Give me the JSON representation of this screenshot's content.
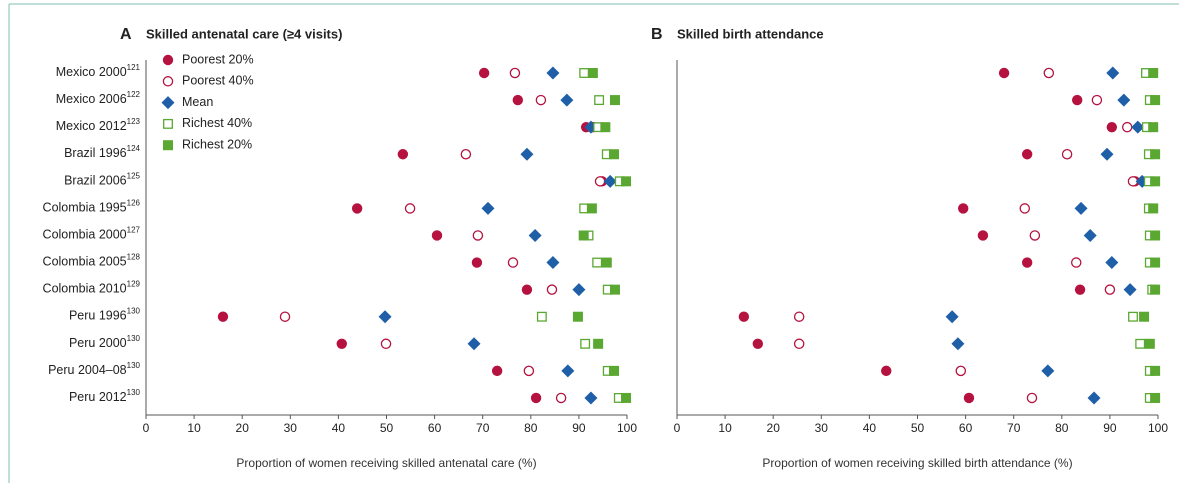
{
  "chart_data": [
    {
      "type": "dot",
      "panel": "A",
      "title": "Skilled antenatal care (≥4 visits)",
      "xlabel": "Proportion of women receiving skilled antenatal care (%)",
      "categories": [
        "Mexico 2000",
        "Mexico 2006",
        "Mexico 2012",
        "Brazil 1996",
        "Brazil 2006",
        "Colombia 1995",
        "Colombia 2000",
        "Colombia 2005",
        "Colombia 2010",
        "Peru 1996",
        "Peru 2000",
        "Peru 2004–08",
        "Peru 2012"
      ],
      "category_refs": [
        "121",
        "122",
        "123",
        "124",
        "125",
        "126",
        "127",
        "128",
        "129",
        "130",
        "130",
        "130",
        "130"
      ],
      "xlim": [
        0,
        100
      ],
      "xticks": [
        0,
        10,
        20,
        30,
        40,
        50,
        60,
        70,
        80,
        90,
        100
      ],
      "legend": "upper left",
      "series": [
        {
          "name": "Poorest 20%",
          "color": "#b5123f",
          "marker": "circle-filled",
          "values": [
            70.3,
            77.3,
            91.5,
            53.4,
            94.8,
            43.9,
            60.5,
            68.8,
            79.2,
            16,
            40.7,
            73,
            81.1
          ]
        },
        {
          "name": "Poorest 40%",
          "color": "#b5123f",
          "marker": "circle-open",
          "values": [
            76.7,
            82.1,
            93,
            66.5,
            94.4,
            54.9,
            69,
            76.3,
            84.4,
            28.9,
            49.9,
            79.6,
            86.3
          ]
        },
        {
          "name": "Mean",
          "color": "#1f5fa8",
          "marker": "diamond",
          "values": [
            84.6,
            87.5,
            92.5,
            79.2,
            96.5,
            71.1,
            80.9,
            84.6,
            90,
            49.7,
            68.2,
            87.7,
            92.5
          ]
        },
        {
          "name": "Richest 40%",
          "color": "#5aa832",
          "marker": "square-open",
          "values": [
            91.1,
            94.2,
            94,
            95.8,
            98.5,
            91.1,
            92,
            93.8,
            96,
            82.3,
            91.3,
            96,
            98.3
          ]
        },
        {
          "name": "Richest 20%",
          "color": "#5aa832",
          "marker": "square-filled",
          "values": [
            92.9,
            97.5,
            95.5,
            97.3,
            99.8,
            92.7,
            91,
            95.8,
            97.5,
            89.8,
            94,
            97.3,
            99.8
          ]
        }
      ]
    },
    {
      "type": "dot",
      "panel": "B",
      "title": "Skilled birth attendance",
      "xlabel": "Proportion of women receiving skilled birth attendance (%)",
      "xlim": [
        0,
        100
      ],
      "xticks": [
        0,
        10,
        20,
        30,
        40,
        50,
        60,
        70,
        80,
        90,
        100
      ],
      "series": [
        {
          "color": "#b5123f",
          "marker": "circle-filled",
          "values": [
            68,
            83.2,
            90.4,
            72.8,
            95.2,
            59.5,
            63.6,
            72.8,
            83.8,
            13.9,
            16.8,
            43.5,
            60.7
          ]
        },
        {
          "color": "#b5123f",
          "marker": "circle-open",
          "values": [
            77.3,
            87.3,
            93.6,
            81.1,
            94.8,
            72.3,
            74.4,
            83,
            90,
            25.4,
            25.4,
            59,
            73.8
          ]
        },
        {
          "color": "#1f5fa8",
          "marker": "diamond",
          "values": [
            90.6,
            92.9,
            95.8,
            89.4,
            96.7,
            84,
            85.9,
            90.4,
            94.2,
            57.2,
            58.4,
            77.1,
            86.7
          ]
        },
        {
          "color": "#5aa832",
          "marker": "square-open",
          "values": [
            97.5,
            98.3,
            97.7,
            98.1,
            98.1,
            98.1,
            98.3,
            98.3,
            98.8,
            94.8,
            96.3,
            98.3,
            98.3
          ]
        },
        {
          "color": "#5aa832",
          "marker": "square-filled",
          "values": [
            99,
            99.4,
            99,
            99.4,
            99.4,
            99,
            99.4,
            99.4,
            99.4,
            97.1,
            98.3,
            99.4,
            99.4
          ]
        }
      ]
    }
  ]
}
